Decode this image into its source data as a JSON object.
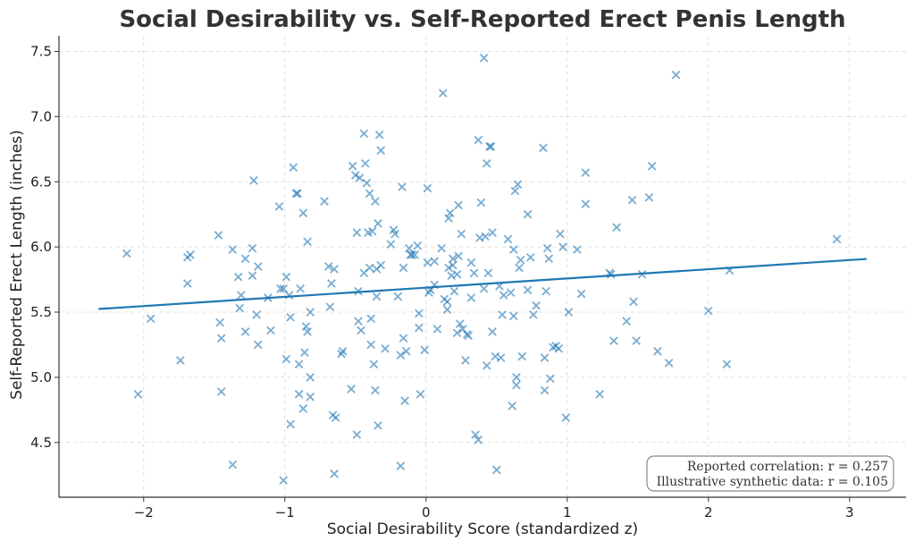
{
  "chart_data": {
    "type": "scatter",
    "title": "Social Desirability vs. Self-Reported Erect Penis Length",
    "xlabel": "Social Desirability Score (standardized z)",
    "ylabel": "Self-Reported Erect Length (inches)",
    "xlim": [
      -2.6,
      3.4
    ],
    "ylim": [
      4.08,
      7.62
    ],
    "x_ticks": [
      -2,
      -1,
      0,
      1,
      2,
      3
    ],
    "x_tick_labels": [
      "−2",
      "−1",
      "0",
      "1",
      "2",
      "3"
    ],
    "y_ticks": [
      4.5,
      5.0,
      5.5,
      6.0,
      6.5,
      7.0,
      7.5
    ],
    "y_tick_labels": [
      "4.5",
      "5.0",
      "5.5",
      "6.0",
      "6.5",
      "7.0",
      "7.5"
    ],
    "grid": true,
    "marker": "x",
    "point_color": "#1f77b4",
    "line_color": "#1f77b4",
    "points": [
      [
        -2.12,
        5.95
      ],
      [
        -2.04,
        4.87
      ],
      [
        -1.95,
        5.45
      ],
      [
        -1.74,
        5.13
      ],
      [
        -1.69,
        5.72
      ],
      [
        -1.69,
        5.92
      ],
      [
        -1.67,
        5.94
      ],
      [
        -1.47,
        6.09
      ],
      [
        -1.46,
        5.42
      ],
      [
        -1.45,
        5.3
      ],
      [
        -1.45,
        4.89
      ],
      [
        -1.37,
        5.98
      ],
      [
        -1.37,
        4.33
      ],
      [
        -1.33,
        5.77
      ],
      [
        -1.32,
        5.53
      ],
      [
        -1.31,
        5.63
      ],
      [
        -1.28,
        5.91
      ],
      [
        -1.28,
        5.35
      ],
      [
        -1.23,
        5.99
      ],
      [
        -1.23,
        5.78
      ],
      [
        -1.22,
        6.51
      ],
      [
        -1.2,
        5.48
      ],
      [
        -1.19,
        5.85
      ],
      [
        -1.19,
        5.25
      ],
      [
        -1.12,
        5.61
      ],
      [
        -1.1,
        5.36
      ],
      [
        -1.04,
        6.31
      ],
      [
        -1.03,
        5.68
      ],
      [
        -1.01,
        5.68
      ],
      [
        -1.01,
        4.21
      ],
      [
        -0.99,
        5.77
      ],
      [
        -0.99,
        5.14
      ],
      [
        -0.97,
        5.63
      ],
      [
        -0.96,
        5.46
      ],
      [
        -0.96,
        4.64
      ],
      [
        -0.94,
        6.61
      ],
      [
        -0.92,
        6.41
      ],
      [
        -0.91,
        6.41
      ],
      [
        -0.9,
        5.1
      ],
      [
        -0.9,
        4.87
      ],
      [
        -0.89,
        5.68
      ],
      [
        -0.87,
        6.26
      ],
      [
        -0.87,
        4.76
      ],
      [
        -0.86,
        5.19
      ],
      [
        -0.85,
        5.39
      ],
      [
        -0.84,
        6.04
      ],
      [
        -0.84,
        5.35
      ],
      [
        -0.82,
        5.5
      ],
      [
        -0.82,
        5.0
      ],
      [
        -0.82,
        4.85
      ],
      [
        -0.72,
        6.35
      ],
      [
        -0.69,
        5.85
      ],
      [
        -0.68,
        5.54
      ],
      [
        -0.67,
        5.72
      ],
      [
        -0.66,
        4.71
      ],
      [
        -0.65,
        5.83
      ],
      [
        -0.65,
        4.26
      ],
      [
        -0.64,
        4.69
      ],
      [
        -0.6,
        5.18
      ],
      [
        -0.59,
        5.2
      ],
      [
        -0.53,
        4.91
      ],
      [
        -0.52,
        6.62
      ],
      [
        -0.5,
        6.55
      ],
      [
        -0.49,
        6.11
      ],
      [
        -0.49,
        4.56
      ],
      [
        -0.48,
        5.43
      ],
      [
        -0.48,
        5.66
      ],
      [
        -0.47,
        6.53
      ],
      [
        -0.46,
        5.36
      ],
      [
        -0.44,
        6.87
      ],
      [
        -0.44,
        5.8
      ],
      [
        -0.43,
        6.64
      ],
      [
        -0.42,
        6.49
      ],
      [
        -0.41,
        6.11
      ],
      [
        -0.4,
        6.41
      ],
      [
        -0.4,
        5.84
      ],
      [
        -0.39,
        5.45
      ],
      [
        -0.39,
        5.25
      ],
      [
        -0.38,
        6.12
      ],
      [
        -0.37,
        5.1
      ],
      [
        -0.36,
        6.35
      ],
      [
        -0.36,
        4.9
      ],
      [
        -0.35,
        5.83
      ],
      [
        -0.35,
        5.62
      ],
      [
        -0.34,
        6.18
      ],
      [
        -0.34,
        4.63
      ],
      [
        -0.33,
        6.86
      ],
      [
        -0.32,
        6.74
      ],
      [
        -0.32,
        5.86
      ],
      [
        -0.29,
        5.22
      ],
      [
        -0.25,
        6.02
      ],
      [
        -0.23,
        6.13
      ],
      [
        -0.22,
        6.1
      ],
      [
        -0.2,
        5.62
      ],
      [
        -0.18,
        5.17
      ],
      [
        -0.18,
        4.32
      ],
      [
        -0.17,
        6.46
      ],
      [
        -0.16,
        5.84
      ],
      [
        -0.16,
        5.3
      ],
      [
        -0.15,
        4.82
      ],
      [
        -0.14,
        5.2
      ],
      [
        -0.12,
        5.99
      ],
      [
        -0.11,
        5.94
      ],
      [
        -0.1,
        5.94
      ],
      [
        -0.08,
        5.94
      ],
      [
        -0.06,
        6.01
      ],
      [
        -0.05,
        5.49
      ],
      [
        -0.05,
        5.38
      ],
      [
        -0.04,
        4.87
      ],
      [
        -0.01,
        5.21
      ],
      [
        0.01,
        6.45
      ],
      [
        0.01,
        5.88
      ],
      [
        0.02,
        5.65
      ],
      [
        0.03,
        5.67
      ],
      [
        0.06,
        5.89
      ],
      [
        0.06,
        5.71
      ],
      [
        0.08,
        5.37
      ],
      [
        0.11,
        5.99
      ],
      [
        0.12,
        7.18
      ],
      [
        0.13,
        5.6
      ],
      [
        0.15,
        5.58
      ],
      [
        0.15,
        5.52
      ],
      [
        0.16,
        6.22
      ],
      [
        0.16,
        5.84
      ],
      [
        0.17,
        6.26
      ],
      [
        0.18,
        5.78
      ],
      [
        0.19,
        5.91
      ],
      [
        0.19,
        5.86
      ],
      [
        0.2,
        5.66
      ],
      [
        0.22,
        5.79
      ],
      [
        0.22,
        5.34
      ],
      [
        0.23,
        6.32
      ],
      [
        0.23,
        5.93
      ],
      [
        0.24,
        5.41
      ],
      [
        0.25,
        6.1
      ],
      [
        0.26,
        5.37
      ],
      [
        0.28,
        5.13
      ],
      [
        0.29,
        5.33
      ],
      [
        0.3,
        5.32
      ],
      [
        0.32,
        5.61
      ],
      [
        0.32,
        5.88
      ],
      [
        0.34,
        5.8
      ],
      [
        0.35,
        4.56
      ],
      [
        0.37,
        6.82
      ],
      [
        0.37,
        4.52
      ],
      [
        0.38,
        6.07
      ],
      [
        0.39,
        6.34
      ],
      [
        0.41,
        7.45
      ],
      [
        0.41,
        5.68
      ],
      [
        0.42,
        6.08
      ],
      [
        0.43,
        5.09
      ],
      [
        0.43,
        6.64
      ],
      [
        0.44,
        5.8
      ],
      [
        0.45,
        6.77
      ],
      [
        0.46,
        6.77
      ],
      [
        0.47,
        6.11
      ],
      [
        0.47,
        5.35
      ],
      [
        0.49,
        5.16
      ],
      [
        0.5,
        4.29
      ],
      [
        0.52,
        5.7
      ],
      [
        0.53,
        5.15
      ],
      [
        0.54,
        5.48
      ],
      [
        0.55,
        5.63
      ],
      [
        0.58,
        6.06
      ],
      [
        0.6,
        5.65
      ],
      [
        0.61,
        4.78
      ],
      [
        0.62,
        5.47
      ],
      [
        0.62,
        5.98
      ],
      [
        0.63,
        6.43
      ],
      [
        0.64,
        5.0
      ],
      [
        0.64,
        4.94
      ],
      [
        0.65,
        6.48
      ],
      [
        0.66,
        5.84
      ],
      [
        0.67,
        5.9
      ],
      [
        0.68,
        5.16
      ],
      [
        0.72,
        6.25
      ],
      [
        0.72,
        5.67
      ],
      [
        0.74,
        5.92
      ],
      [
        0.76,
        5.48
      ],
      [
        0.78,
        5.55
      ],
      [
        0.83,
        6.76
      ],
      [
        0.84,
        5.15
      ],
      [
        0.84,
        4.9
      ],
      [
        0.85,
        5.66
      ],
      [
        0.86,
        5.99
      ],
      [
        0.87,
        5.91
      ],
      [
        0.88,
        4.99
      ],
      [
        0.9,
        5.23
      ],
      [
        0.92,
        5.24
      ],
      [
        0.94,
        5.22
      ],
      [
        0.95,
        6.1
      ],
      [
        0.97,
        6.0
      ],
      [
        0.99,
        4.69
      ],
      [
        1.01,
        5.5
      ],
      [
        1.07,
        5.98
      ],
      [
        1.1,
        5.64
      ],
      [
        1.13,
        6.57
      ],
      [
        1.13,
        6.33
      ],
      [
        1.23,
        4.87
      ],
      [
        1.3,
        5.8
      ],
      [
        1.31,
        5.79
      ],
      [
        1.33,
        5.28
      ],
      [
        1.35,
        6.15
      ],
      [
        1.42,
        5.43
      ],
      [
        1.46,
        6.36
      ],
      [
        1.47,
        5.58
      ],
      [
        1.49,
        5.28
      ],
      [
        1.53,
        5.79
      ],
      [
        1.58,
        6.38
      ],
      [
        1.6,
        6.62
      ],
      [
        1.64,
        5.2
      ],
      [
        1.72,
        5.11
      ],
      [
        1.77,
        7.32
      ],
      [
        2.0,
        5.51
      ],
      [
        2.13,
        5.1
      ],
      [
        2.15,
        5.82
      ],
      [
        2.91,
        6.06
      ]
    ],
    "fit_line": {
      "x": [
        -2.32,
        3.12
      ],
      "y": [
        5.524,
        5.908
      ]
    },
    "annotations": [
      "Reported correlation: r = 0.257",
      "Illustrative synthetic data: r = 0.105"
    ],
    "annotation_placement": "bottom-right"
  }
}
